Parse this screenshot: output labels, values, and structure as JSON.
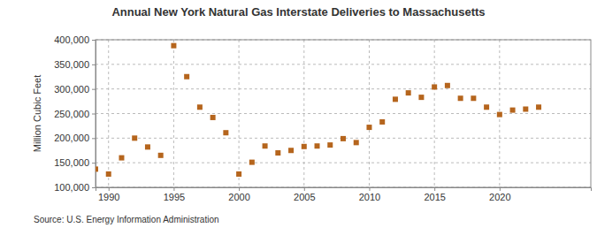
{
  "chart_data": {
    "type": "scatter",
    "title": "Annual New York Natural Gas Interstate Deliveries to Massachusetts",
    "y_label": "Million Cubic Feet",
    "source": "Source: U.S. Energy Information Administration",
    "x": [
      1989,
      1990,
      1991,
      1992,
      1993,
      1994,
      1995,
      1996,
      1997,
      1998,
      1999,
      2000,
      2001,
      2002,
      2003,
      2004,
      2005,
      2006,
      2007,
      2008,
      2009,
      2010,
      2011,
      2012,
      2013,
      2014,
      2015,
      2016,
      2017,
      2018,
      2019,
      2020,
      2021,
      2022,
      2023
    ],
    "values": [
      137000,
      127000,
      160000,
      200000,
      182000,
      165000,
      388000,
      325000,
      263000,
      242000,
      211000,
      127000,
      151000,
      184000,
      170000,
      175000,
      183000,
      184000,
      186000,
      199000,
      191000,
      222000,
      233000,
      279000,
      292000,
      283000,
      304000,
      307000,
      281000,
      281000,
      263000,
      248000,
      257000,
      259000,
      263000
    ],
    "color": "#b5651d",
    "marker": "square",
    "xlim": [
      1989,
      2027
    ],
    "xticks": [
      1990,
      1995,
      2000,
      2005,
      2010,
      2015,
      2020
    ],
    "ylim": [
      100000,
      400000
    ],
    "yticks": [
      {
        "value": 100000,
        "label": "100,000"
      },
      {
        "value": 150000,
        "label": "150,000"
      },
      {
        "value": 200000,
        "label": "200,000"
      },
      {
        "value": 250000,
        "label": "250,000"
      },
      {
        "value": 300000,
        "label": "300,000"
      },
      {
        "value": 350000,
        "label": "350,000"
      },
      {
        "value": 400000,
        "label": "400,000"
      }
    ],
    "grid": true
  }
}
